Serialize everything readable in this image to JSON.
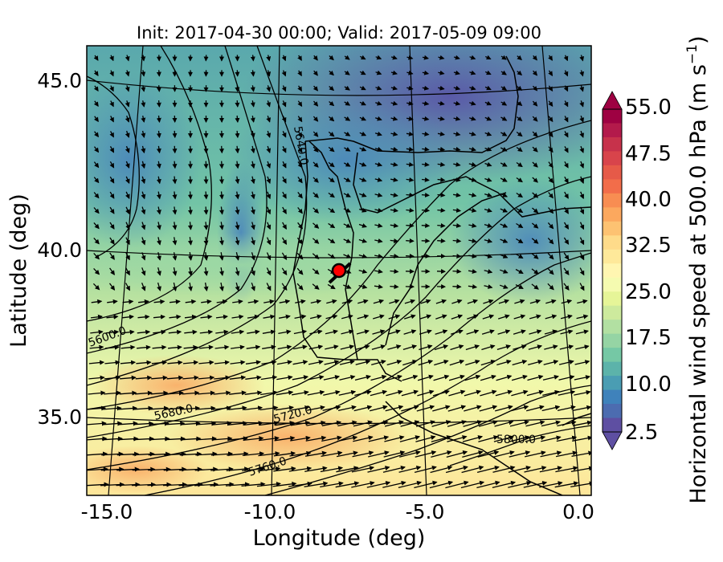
{
  "figure": {
    "title": "Init: 2017-04-30 00:00; Valid: 2017-05-09 09:00",
    "xlabel": "Longitude (deg)",
    "ylabel": "Latitude (deg)",
    "xticks": [
      "-15.0",
      "-10.0",
      "-5.0",
      "0.0"
    ],
    "yticks": [
      "45.0",
      "40.0",
      "35.0"
    ]
  },
  "colorbar": {
    "label": "Horizontal wind speed at 500.0 hPa (m s",
    "label_sup": "−1",
    "label_end": ")",
    "ticks": [
      "55.0",
      "47.5",
      "40.0",
      "32.5",
      "25.0",
      "17.5",
      "10.0",
      "2.5"
    ],
    "colors": [
      "#9e0142",
      "#b31a4b",
      "#c7324b",
      "#d8444b",
      "#e65a48",
      "#f26d4a",
      "#f88d52",
      "#fca85e",
      "#fdc272",
      "#fedb8a",
      "#fee99a",
      "#fff6b1",
      "#f5fbb0",
      "#e6f598",
      "#cdea9d",
      "#b2e0a2",
      "#95d4a4",
      "#75c8a5",
      "#5cb3aa",
      "#4a9db3",
      "#3f82bb",
      "#4c6cb0",
      "#5e4fa2"
    ]
  },
  "map": {
    "contour_labels": [
      "5600.0",
      "5640.0",
      "5680.0",
      "5720.0",
      "5760.0",
      "5800.0"
    ],
    "palette": {
      "low": "#5e4fa2",
      "mid": "#7fc9a5",
      "high": "#fdae61"
    },
    "marker_color": "#ff0000",
    "point": {
      "lon": -7.7,
      "lat": 39.4
    }
  }
}
